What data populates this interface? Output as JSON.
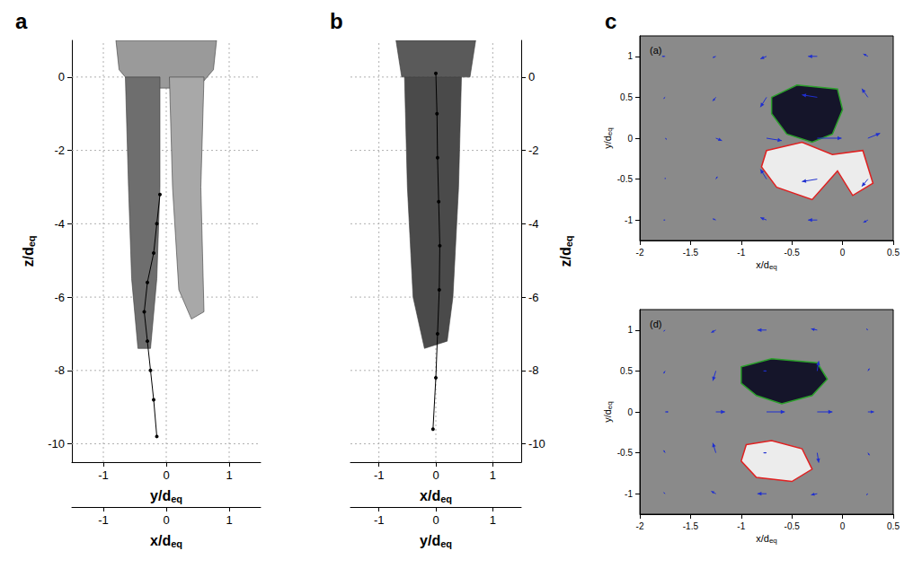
{
  "chart_data": [
    {
      "panel": "a",
      "type": "isosurface",
      "zlabel": "z/deq",
      "zlim": [
        -10.5,
        1
      ],
      "zticks": [
        -10,
        -8,
        -6,
        -4,
        -2,
        0
      ],
      "xlim": [
        -1.5,
        1.5
      ],
      "x_axes": [
        {
          "label": "y/deq",
          "ticks": [
            -1,
            0,
            1
          ]
        },
        {
          "label": "x/deq",
          "ticks": [
            -1,
            0,
            1
          ]
        }
      ],
      "grid": true,
      "surfaces": [
        {
          "color": "#9a9a9a",
          "points": [
            [
              -0.8,
              1.0
            ],
            [
              0.8,
              1.0
            ],
            [
              0.75,
              0.2
            ],
            [
              0.5,
              -0.3
            ],
            [
              -0.5,
              -0.3
            ],
            [
              -0.75,
              0.2
            ]
          ]
        },
        {
          "color": "#6e6e6e",
          "points": [
            [
              -0.65,
              0.0
            ],
            [
              -0.1,
              0.0
            ],
            [
              -0.1,
              -3.0
            ],
            [
              -0.15,
              -5.5
            ],
            [
              -0.25,
              -7.4
            ],
            [
              -0.45,
              -7.4
            ],
            [
              -0.55,
              -5.5
            ],
            [
              -0.6,
              -3.0
            ]
          ]
        },
        {
          "color": "#a8a8a8",
          "points": [
            [
              0.05,
              0.0
            ],
            [
              0.6,
              0.0
            ],
            [
              0.55,
              -3.0
            ],
            [
              0.6,
              -6.4
            ],
            [
              0.4,
              -6.6
            ],
            [
              0.2,
              -5.8
            ],
            [
              0.1,
              -3.0
            ]
          ]
        }
      ],
      "trajectory": {
        "color": "#000000",
        "marker": "circle",
        "x": [
          -0.1,
          -0.15,
          -0.2,
          -0.3,
          -0.35,
          -0.3,
          -0.25,
          -0.2,
          -0.15
        ],
        "z": [
          -3.2,
          -4.0,
          -4.8,
          -5.6,
          -6.4,
          -7.2,
          -8.0,
          -8.8,
          -9.8
        ]
      }
    },
    {
      "panel": "b",
      "type": "isosurface",
      "zlabel": "z/deq",
      "zlim": [
        -10.5,
        1
      ],
      "zticks": [
        -10,
        -8,
        -6,
        -4,
        -2,
        0
      ],
      "xlim": [
        -1.5,
        1.5
      ],
      "x_axes": [
        {
          "label": "x/deq",
          "ticks": [
            -1,
            0,
            1
          ]
        },
        {
          "label": "y/deq",
          "ticks": [
            -1,
            0,
            1
          ]
        }
      ],
      "grid": true,
      "surfaces": [
        {
          "color": "#5a5a5a",
          "points": [
            [
              -0.7,
              1.0
            ],
            [
              0.7,
              1.0
            ],
            [
              0.6,
              0.0
            ],
            [
              -0.6,
              0.0
            ]
          ]
        },
        {
          "color": "#4a4a4a",
          "points": [
            [
              -0.55,
              0.0
            ],
            [
              0.45,
              0.0
            ],
            [
              0.4,
              -3.0
            ],
            [
              0.3,
              -6.0
            ],
            [
              0.2,
              -7.2
            ],
            [
              -0.2,
              -7.4
            ],
            [
              -0.4,
              -6.0
            ],
            [
              -0.5,
              -3.0
            ]
          ]
        }
      ],
      "trajectory": {
        "color": "#000000",
        "marker": "circle",
        "x": [
          0.0,
          0.02,
          0.03,
          0.05,
          0.07,
          0.06,
          0.03,
          0.0,
          -0.05
        ],
        "z": [
          0.1,
          -1.0,
          -2.2,
          -3.4,
          -4.6,
          -5.8,
          -7.0,
          -8.2,
          -9.6
        ]
      }
    },
    {
      "panel": "c",
      "title": "(a)",
      "type": "vector_field",
      "xlabel": "x/deq",
      "ylabel": "y/deq",
      "xlim": [
        -2,
        0.5
      ],
      "xticks": [
        -2,
        -1.5,
        -1,
        -0.5,
        0,
        0.5
      ],
      "ylim": [
        -1.25,
        1.25
      ],
      "yticks": [
        -1,
        -0.5,
        0,
        0.5,
        1
      ],
      "color": "#1f2fd0",
      "vectors": [
        [
          -1.75,
          1,
          -0.1,
          0
        ],
        [
          -1.25,
          1,
          -0.1,
          -0.05
        ],
        [
          -0.75,
          1,
          -0.2,
          -0.1
        ],
        [
          -0.25,
          1,
          -0.3,
          0
        ],
        [
          0.25,
          1,
          -0.15,
          0.1
        ],
        [
          -1.75,
          0.5,
          -0.05,
          -0.05
        ],
        [
          -1.25,
          0.5,
          -0.1,
          -0.15
        ],
        [
          -0.75,
          0.5,
          -0.2,
          -0.4
        ],
        [
          -0.25,
          0.5,
          -0.5,
          0.1
        ],
        [
          0.25,
          0.5,
          -0.2,
          0.35
        ],
        [
          -1.75,
          0,
          0.05,
          -0.05
        ],
        [
          -1.25,
          0,
          0.2,
          -0.1
        ],
        [
          -0.75,
          0,
          0.5,
          -0.1
        ],
        [
          -0.25,
          0,
          0.8,
          0
        ],
        [
          0.25,
          0,
          0.4,
          0.2
        ],
        [
          -1.75,
          -0.5,
          0,
          0.05
        ],
        [
          -1.25,
          -0.5,
          0.05,
          0.1
        ],
        [
          -0.75,
          -0.5,
          -0.2,
          0.4
        ],
        [
          -0.25,
          -0.5,
          -0.5,
          -0.1
        ],
        [
          0.25,
          -0.5,
          -0.2,
          -0.3
        ],
        [
          -1.75,
          -1,
          -0.05,
          0
        ],
        [
          -1.25,
          -1,
          -0.1,
          0.05
        ],
        [
          -0.75,
          -1,
          -0.2,
          0.1
        ],
        [
          -0.25,
          -1,
          -0.3,
          0
        ],
        [
          0.25,
          -1,
          -0.15,
          -0.1
        ]
      ],
      "contours": [
        {
          "color": "#2ca02c",
          "points": [
            [
              -0.7,
              0.5
            ],
            [
              -0.45,
              0.65
            ],
            [
              -0.05,
              0.6
            ],
            [
              0.0,
              0.35
            ],
            [
              -0.1,
              0.05
            ],
            [
              -0.3,
              -0.05
            ],
            [
              -0.55,
              0.05
            ],
            [
              -0.7,
              0.3
            ]
          ]
        },
        {
          "color": "#e02020",
          "points": [
            [
              -0.75,
              -0.15
            ],
            [
              -0.4,
              -0.05
            ],
            [
              -0.1,
              -0.2
            ],
            [
              0.2,
              -0.15
            ],
            [
              0.3,
              -0.55
            ],
            [
              0.1,
              -0.7
            ],
            [
              -0.05,
              -0.4
            ],
            [
              -0.3,
              -0.75
            ],
            [
              -0.65,
              -0.6
            ],
            [
              -0.8,
              -0.35
            ]
          ]
        }
      ]
    },
    {
      "title": "(d)",
      "type": "vector_field",
      "xlabel": "x/deq",
      "ylabel": "y/deq",
      "xlim": [
        -2,
        0.5
      ],
      "xticks": [
        -2,
        -1.5,
        -1,
        -0.5,
        0,
        0.5
      ],
      "ylim": [
        -1.25,
        1.25
      ],
      "yticks": [
        -1,
        -0.5,
        0,
        0.5,
        1
      ],
      "color": "#1f2fd0",
      "vectors": [
        [
          -1.75,
          1,
          -0.05,
          -0.05
        ],
        [
          -1.25,
          1,
          -0.15,
          -0.1
        ],
        [
          -0.75,
          1,
          -0.3,
          0
        ],
        [
          -0.25,
          1,
          -0.2,
          0.05
        ],
        [
          0.25,
          1,
          -0.05,
          0.05
        ],
        [
          -1.75,
          0.5,
          -0.05,
          -0.1
        ],
        [
          -1.25,
          0.5,
          -0.1,
          -0.4
        ],
        [
          -0.75,
          0.5,
          -0.1,
          0
        ],
        [
          -0.25,
          0.5,
          0.05,
          0.4
        ],
        [
          0.25,
          0.5,
          0.05,
          0.1
        ],
        [
          -1.75,
          0,
          0.1,
          0
        ],
        [
          -1.25,
          0,
          0.3,
          0
        ],
        [
          -0.75,
          0,
          0.6,
          0
        ],
        [
          -0.25,
          0,
          0.5,
          0
        ],
        [
          0.25,
          0,
          0.2,
          0
        ],
        [
          -1.75,
          -0.5,
          -0.05,
          0.1
        ],
        [
          -1.25,
          -0.5,
          -0.1,
          0.4
        ],
        [
          -0.75,
          -0.5,
          -0.1,
          0
        ],
        [
          -0.25,
          -0.5,
          0.05,
          -0.4
        ],
        [
          0.25,
          -0.5,
          0.05,
          -0.1
        ],
        [
          -1.75,
          -1,
          -0.05,
          0.05
        ],
        [
          -1.25,
          -1,
          -0.15,
          0.1
        ],
        [
          -0.75,
          -1,
          -0.3,
          0
        ],
        [
          -0.25,
          -1,
          -0.2,
          -0.05
        ],
        [
          0.25,
          -1,
          -0.05,
          -0.05
        ]
      ],
      "contours": [
        {
          "color": "#2ca02c",
          "points": [
            [
              -1.0,
              0.55
            ],
            [
              -0.7,
              0.65
            ],
            [
              -0.25,
              0.6
            ],
            [
              -0.15,
              0.4
            ],
            [
              -0.3,
              0.2
            ],
            [
              -0.6,
              0.1
            ],
            [
              -0.85,
              0.2
            ],
            [
              -1.0,
              0.35
            ]
          ]
        },
        {
          "color": "#e02020",
          "points": [
            [
              -0.95,
              -0.4
            ],
            [
              -0.7,
              -0.35
            ],
            [
              -0.4,
              -0.45
            ],
            [
              -0.3,
              -0.7
            ],
            [
              -0.5,
              -0.85
            ],
            [
              -0.85,
              -0.8
            ],
            [
              -1.0,
              -0.6
            ]
          ]
        }
      ]
    }
  ]
}
